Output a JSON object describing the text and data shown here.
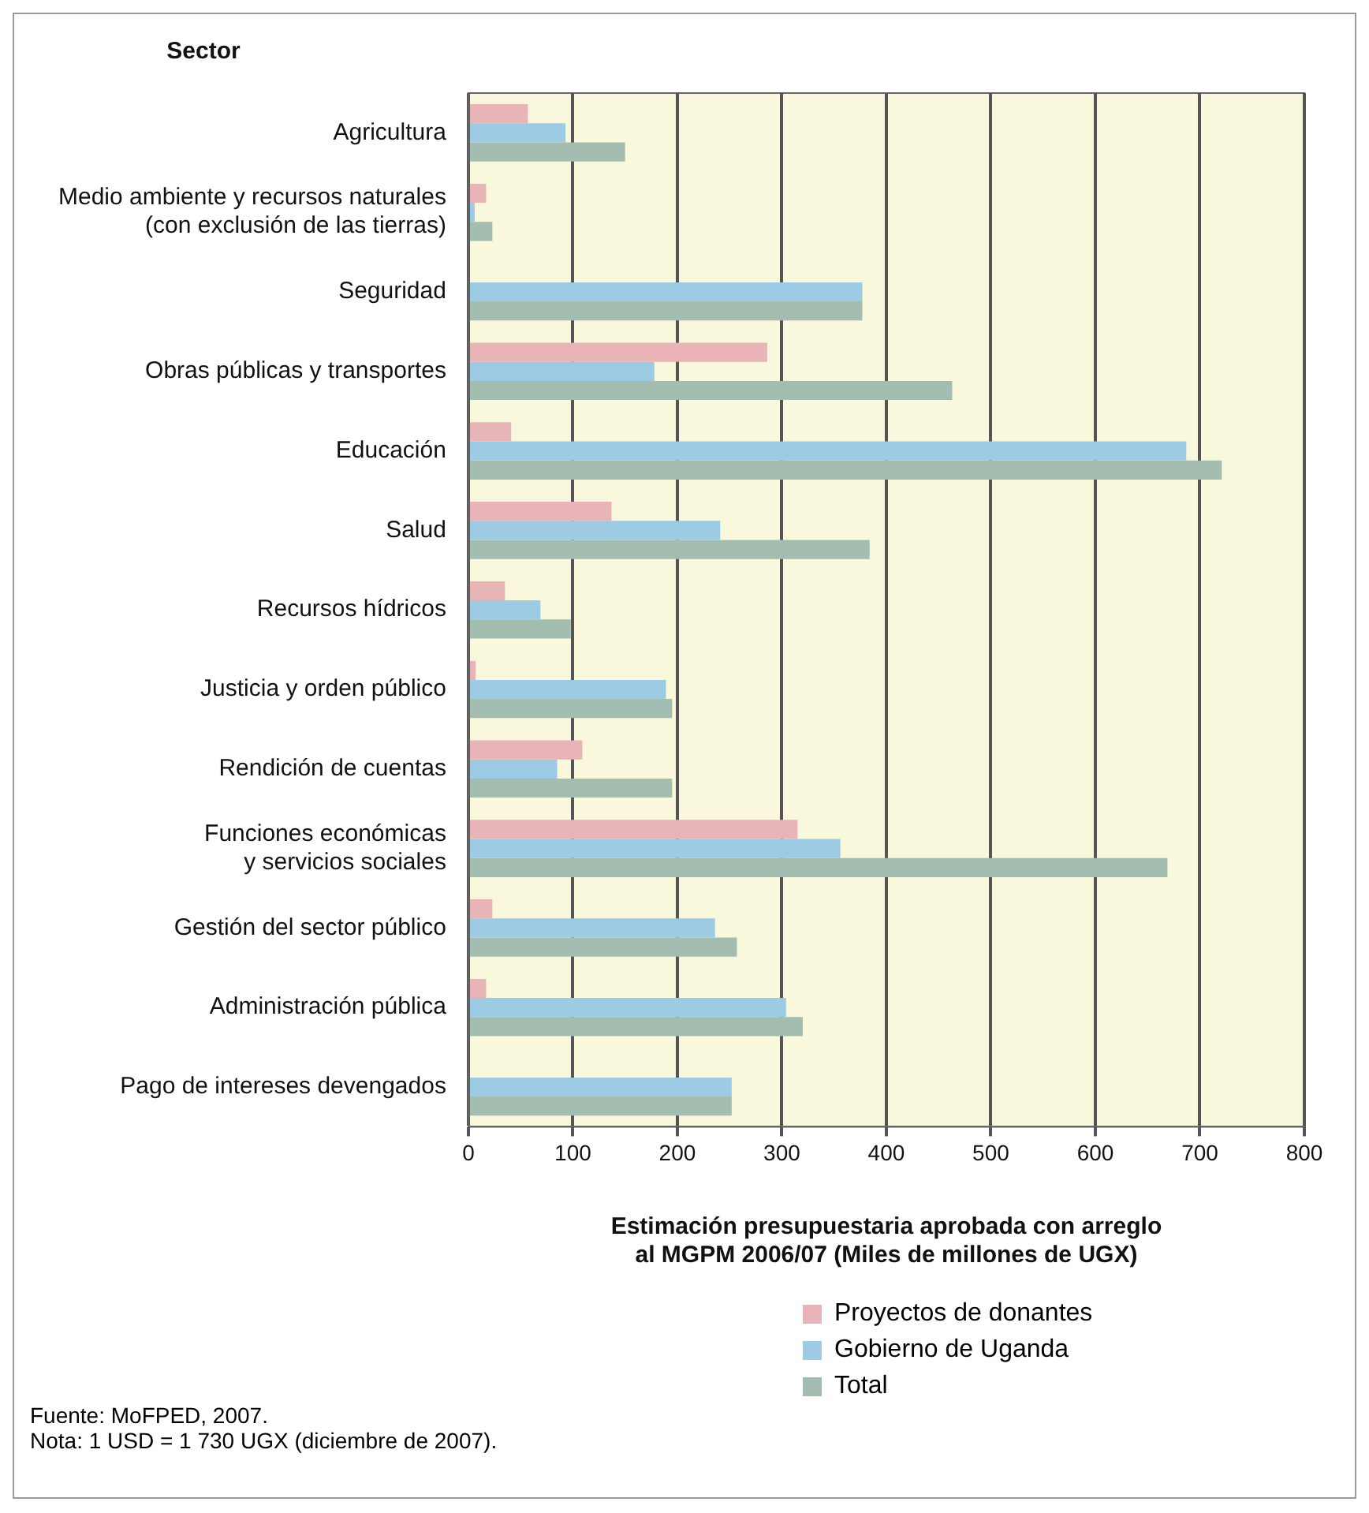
{
  "chart_data": {
    "type": "bar",
    "orientation": "horizontal",
    "ylabel": "Sector",
    "xlabel": "Estimación presupuestaria aprobada con arreglo\nal MGPM 2006/07 (Miles de millones de UGX)",
    "categories": [
      "Agricultura",
      "Medio ambiente y recursos naturales\n(con exclusión de las tierras)",
      "Seguridad",
      "Obras públicas y transportes",
      "Educación",
      "Salud",
      "Recursos hídricos",
      "Justicia y orden público",
      "Rendición de cuentas",
      "Funciones económicas\ny servicios sociales",
      "Gestión del sector público",
      "Administración pública",
      "Pago de intereses devengados"
    ],
    "series": [
      {
        "name": "Proyectos de donantes",
        "color": "#e8b4b8",
        "values": [
          57,
          17,
          null,
          286,
          41,
          137,
          35,
          7,
          109,
          315,
          23,
          17,
          null
        ]
      },
      {
        "name": "Gobierno de Uganda",
        "color": "#9ccbe3",
        "values": [
          93,
          6,
          377,
          178,
          687,
          241,
          69,
          189,
          85,
          356,
          236,
          304,
          252
        ]
      },
      {
        "name": "Total",
        "color": "#a3beb0",
        "values": [
          150,
          23,
          377,
          463,
          721,
          384,
          98,
          195,
          195,
          669,
          257,
          320,
          252
        ]
      }
    ],
    "xlim": [
      0,
      800
    ],
    "xticks": [
      0,
      100,
      200,
      300,
      400,
      500,
      600,
      700,
      800
    ],
    "grid": "x",
    "legend": "bottom right",
    "annotations": [
      "Fuente: MoFPED, 2007.",
      "Nota: 1 USD = 1 730 UGX (diciembre de 2007)."
    ]
  }
}
